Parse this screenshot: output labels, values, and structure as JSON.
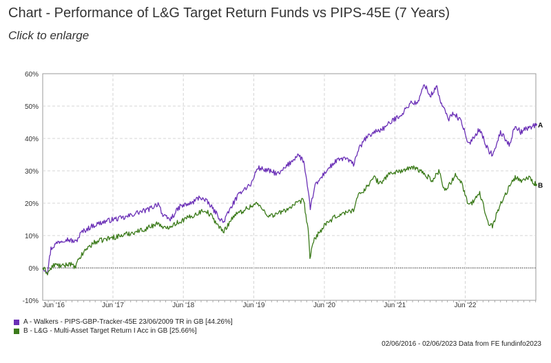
{
  "header": {
    "title": "Chart - Performance of L&G Target Return Funds vs PIPS-45E (7 Years)",
    "subtitle": "Click to enlarge"
  },
  "footer": {
    "text": "02/06/2016 - 02/06/2023 Data from FE fundinfo2023"
  },
  "chart_data": {
    "type": "line",
    "x_range": [
      "2016-06-02",
      "2023-06-02"
    ],
    "x_ticks": [
      "Jun '16",
      "Jun '17",
      "Jun '18",
      "Jun '19",
      "Jun '20",
      "Jun '21",
      "Jun '22"
    ],
    "y_ticks": [
      "60%",
      "50%",
      "40%",
      "30%",
      "20%",
      "10%",
      "0%",
      "-10%"
    ],
    "ylim": [
      -10,
      60
    ],
    "grid": true,
    "zero_line": true,
    "legend_position": "bottom-left",
    "series": [
      {
        "name": "A - Walkers - PIPS-GBP-Tracker-45E 23/06/2009 TR in GB [44.26%]",
        "end_label": "A",
        "color": "#6a2fb6",
        "points": [
          [
            "2016-06-02",
            0
          ],
          [
            "2016-06-27",
            -1
          ],
          [
            "2016-07-15",
            6
          ],
          [
            "2016-08-20",
            8
          ],
          [
            "2016-10-01",
            9
          ],
          [
            "2016-11-20",
            8
          ],
          [
            "2016-12-20",
            11
          ],
          [
            "2017-02-15",
            13
          ],
          [
            "2017-04-01",
            14
          ],
          [
            "2017-06-01",
            15
          ],
          [
            "2017-08-01",
            15.5
          ],
          [
            "2017-10-01",
            17
          ],
          [
            "2017-12-01",
            18
          ],
          [
            "2018-01-25",
            20
          ],
          [
            "2018-02-15",
            16
          ],
          [
            "2018-03-25",
            15
          ],
          [
            "2018-05-15",
            19
          ],
          [
            "2018-07-15",
            20
          ],
          [
            "2018-08-25",
            22
          ],
          [
            "2018-10-10",
            20
          ],
          [
            "2018-12-24",
            14
          ],
          [
            "2019-02-15",
            20
          ],
          [
            "2019-04-01",
            24
          ],
          [
            "2019-05-20",
            26
          ],
          [
            "2019-06-20",
            31
          ],
          [
            "2019-08-15",
            30
          ],
          [
            "2019-10-10",
            29
          ],
          [
            "2019-12-15",
            33
          ],
          [
            "2020-01-15",
            35
          ],
          [
            "2020-02-15",
            33
          ],
          [
            "2020-03-12",
            22
          ],
          [
            "2020-03-20",
            18
          ],
          [
            "2020-04-10",
            25
          ],
          [
            "2020-06-10",
            30
          ],
          [
            "2020-08-01",
            33
          ],
          [
            "2020-09-15",
            34
          ],
          [
            "2020-10-30",
            32
          ],
          [
            "2020-11-20",
            36
          ],
          [
            "2020-12-31",
            40
          ],
          [
            "2021-02-15",
            42
          ],
          [
            "2021-04-01",
            43
          ],
          [
            "2021-06-01",
            46
          ],
          [
            "2021-07-15",
            48
          ],
          [
            "2021-08-20",
            51
          ],
          [
            "2021-09-30",
            51
          ],
          [
            "2021-11-01",
            57
          ],
          [
            "2021-12-01",
            53
          ],
          [
            "2022-01-05",
            56
          ],
          [
            "2022-01-25",
            51
          ],
          [
            "2022-03-08",
            46
          ],
          [
            "2022-04-01",
            48
          ],
          [
            "2022-05-15",
            45
          ],
          [
            "2022-06-15",
            38
          ],
          [
            "2022-08-15",
            43
          ],
          [
            "2022-09-30",
            36
          ],
          [
            "2022-10-25",
            35
          ],
          [
            "2022-12-01",
            42
          ],
          [
            "2023-01-15",
            38
          ],
          [
            "2023-02-15",
            44
          ],
          [
            "2023-03-15",
            42
          ],
          [
            "2023-04-15",
            43
          ],
          [
            "2023-06-02",
            44.26
          ]
        ]
      },
      {
        "name": "B - L&G - Multi-Asset Target Return I Acc in GB [25.66%]",
        "end_label": "B",
        "color": "#3b7a1a",
        "points": [
          [
            "2016-06-02",
            0
          ],
          [
            "2016-06-27",
            -1.5
          ],
          [
            "2016-08-01",
            1
          ],
          [
            "2016-09-15",
            0.5
          ],
          [
            "2016-10-20",
            1.5
          ],
          [
            "2016-11-15",
            0
          ],
          [
            "2016-12-10",
            3
          ],
          [
            "2017-01-15",
            6
          ],
          [
            "2017-03-01",
            8
          ],
          [
            "2017-05-01",
            9
          ],
          [
            "2017-07-15",
            10
          ],
          [
            "2017-09-15",
            11
          ],
          [
            "2017-11-15",
            12
          ],
          [
            "2018-01-25",
            14
          ],
          [
            "2018-02-15",
            12
          ],
          [
            "2018-05-01",
            14
          ],
          [
            "2018-07-15",
            16
          ],
          [
            "2018-09-20",
            18
          ],
          [
            "2018-10-25",
            16
          ],
          [
            "2018-12-24",
            11
          ],
          [
            "2019-02-15",
            16
          ],
          [
            "2019-04-15",
            18
          ],
          [
            "2019-06-15",
            20
          ],
          [
            "2019-08-20",
            16
          ],
          [
            "2019-10-15",
            17
          ],
          [
            "2019-12-15",
            19
          ],
          [
            "2020-02-15",
            21
          ],
          [
            "2020-03-12",
            10
          ],
          [
            "2020-03-18",
            3
          ],
          [
            "2020-04-10",
            9
          ],
          [
            "2020-06-01",
            13
          ],
          [
            "2020-08-01",
            16
          ],
          [
            "2020-09-15",
            17
          ],
          [
            "2020-10-30",
            18
          ],
          [
            "2020-11-20",
            22
          ],
          [
            "2021-01-05",
            25
          ],
          [
            "2021-02-15",
            28
          ],
          [
            "2021-03-15",
            26
          ],
          [
            "2021-05-01",
            29
          ],
          [
            "2021-07-01",
            30
          ],
          [
            "2021-09-15",
            31
          ],
          [
            "2021-11-01",
            29
          ],
          [
            "2021-12-15",
            27
          ],
          [
            "2022-01-15",
            30
          ],
          [
            "2022-02-15",
            24
          ],
          [
            "2022-03-15",
            26
          ],
          [
            "2022-04-15",
            29
          ],
          [
            "2022-05-15",
            26
          ],
          [
            "2022-06-20",
            19
          ],
          [
            "2022-08-15",
            23
          ],
          [
            "2022-09-30",
            14
          ],
          [
            "2022-10-20",
            13
          ],
          [
            "2022-11-25",
            19
          ],
          [
            "2023-01-15",
            25
          ],
          [
            "2023-02-15",
            28
          ],
          [
            "2023-03-15",
            27
          ],
          [
            "2023-05-01",
            28
          ],
          [
            "2023-06-02",
            25.66
          ]
        ]
      }
    ]
  }
}
